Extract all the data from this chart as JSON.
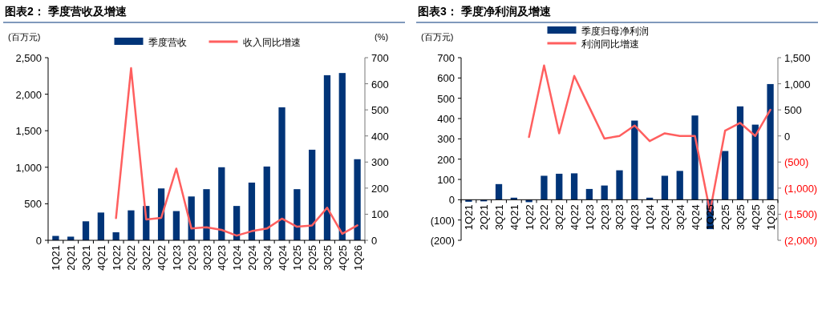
{
  "chart_data": [
    {
      "type": "bar",
      "title": "图表2：  季度营收及增速",
      "ylabel": "(百万元)",
      "y2label": "(%)",
      "categories": [
        "1Q21",
        "2Q21",
        "3Q21",
        "4Q21",
        "1Q22",
        "2Q22",
        "3Q22",
        "4Q22",
        "1Q23",
        "2Q23",
        "3Q23",
        "4Q23",
        "1Q24",
        "2Q24",
        "3Q24",
        "4Q24",
        "1Q25",
        "2Q25",
        "3Q25",
        "4Q25",
        "1Q26"
      ],
      "series": [
        {
          "name": "季度营收",
          "color": "#003478",
          "values": [
            60,
            50,
            260,
            380,
            110,
            410,
            470,
            710,
            400,
            600,
            700,
            1000,
            470,
            790,
            1010,
            1820,
            700,
            1240,
            2260,
            2290,
            1110
          ]
        },
        {
          "name": "收入同比增速",
          "type": "line",
          "axis": "y2",
          "color": "#ff5f5f",
          "values": [
            null,
            null,
            null,
            null,
            85,
            660,
            80,
            86,
            275,
            45,
            50,
            40,
            18,
            35,
            45,
            83,
            52,
            57,
            125,
            25,
            57
          ]
        }
      ],
      "ylim": [
        0,
        2500
      ],
      "yticks": [
        {
          "value": 0,
          "label": "0"
        },
        {
          "value": 500,
          "label": "500"
        },
        {
          "value": 1000,
          "label": "1,000"
        },
        {
          "value": 1500,
          "label": "1,500"
        },
        {
          "value": 2000,
          "label": "2,000"
        },
        {
          "value": 2500,
          "label": "2,500"
        }
      ],
      "y2lim": [
        0,
        700
      ],
      "y2ticks": [
        0,
        100,
        200,
        300,
        400,
        500,
        600,
        700
      ],
      "legend": "top",
      "grid": false
    },
    {
      "type": "bar",
      "title": "图表3：  季度净利润及增速",
      "ylabel": "(百万元)",
      "categories": [
        "1Q21",
        "2Q21",
        "3Q21",
        "4Q21",
        "1Q22",
        "2Q22",
        "3Q22",
        "4Q22",
        "1Q23",
        "2Q23",
        "3Q23",
        "4Q23",
        "1Q24",
        "2Q24",
        "3Q24",
        "4Q24",
        "1Q25",
        "2Q25",
        "3Q25",
        "4Q25",
        "1Q26"
      ],
      "series": [
        {
          "name": "季度归母净利润",
          "color": "#003478",
          "values": [
            -10,
            -8,
            77,
            10,
            -12,
            118,
            128,
            130,
            53,
            70,
            145,
            390,
            10,
            118,
            142,
            415,
            -145,
            240,
            460,
            370,
            570
          ]
        },
        {
          "name": "利润同比增速",
          "type": "line",
          "axis": "y2",
          "color": "#ff5f5f",
          "values": [
            null,
            null,
            null,
            null,
            -20,
            1350,
            50,
            1150,
            550,
            -50,
            0,
            200,
            -100,
            50,
            0,
            0,
            -1450,
            100,
            250,
            0,
            500
          ]
        }
      ],
      "ylim": [
        -200,
        700
      ],
      "yticks": [
        {
          "value": -200,
          "label": "(200)"
        },
        {
          "value": -100,
          "label": "(100)"
        },
        {
          "value": 0,
          "label": "0"
        },
        {
          "value": 100,
          "label": "100"
        },
        {
          "value": 200,
          "label": "200"
        },
        {
          "value": 300,
          "label": "300"
        },
        {
          "value": 400,
          "label": "400"
        },
        {
          "value": 500,
          "label": "500"
        },
        {
          "value": 600,
          "label": "600"
        },
        {
          "value": 700,
          "label": "700"
        }
      ],
      "y2lim": [
        -2000,
        1500
      ],
      "y2ticks": [
        {
          "value": -2000,
          "label": "(2,000)"
        },
        {
          "value": -1500,
          "label": "(1,500)"
        },
        {
          "value": -1000,
          "label": "(1,000)"
        },
        {
          "value": -500,
          "label": "(500)"
        },
        {
          "value": 0,
          "label": "0"
        },
        {
          "value": 500,
          "label": "500"
        },
        {
          "value": 1000,
          "label": "1,000"
        },
        {
          "value": 1500,
          "label": "1,500"
        }
      ],
      "legend": "top",
      "grid": false
    }
  ]
}
